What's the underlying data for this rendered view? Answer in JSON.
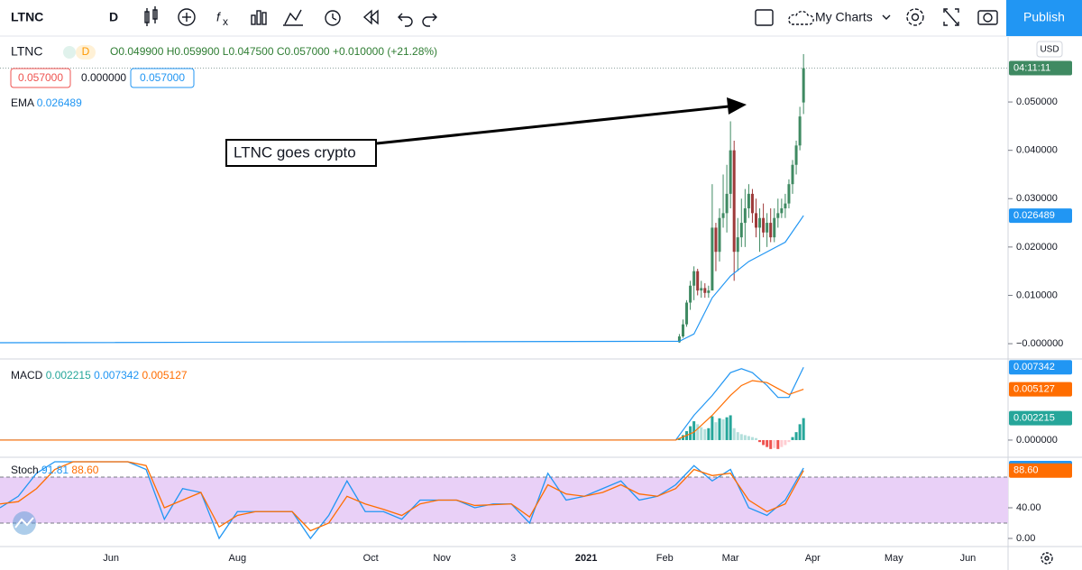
{
  "toolbar": {
    "symbol": "LTNC",
    "interval": "D",
    "layout": "My Charts",
    "publish": "Publish"
  },
  "legend": {
    "symbol": "LTNC",
    "interval": "D",
    "ohlc": [
      "O0.049900",
      "H0.059900",
      "L0.047500",
      "C0.057000",
      "+0.010000 (+21.28%)"
    ],
    "quotes": [
      "0.057000",
      "0.000000",
      "0.057000"
    ],
    "ema": [
      "EMA",
      "0.026489"
    ],
    "macd": [
      "MACD",
      "0.002215",
      "0.007342",
      "0.005127"
    ],
    "stoch": [
      "Stoch",
      "91.81",
      "88.60"
    ]
  },
  "price_axis": {
    "currency": "USD",
    "countdown": "04:11:11"
  },
  "annotation": "LTNC goes crypto",
  "chart_data": [
    {
      "type": "candlestick",
      "x": [
        186,
        187,
        188,
        189,
        190,
        191,
        192,
        193,
        194,
        195,
        196,
        197,
        198,
        199,
        200,
        201,
        202,
        203,
        204,
        205,
        206,
        207,
        208,
        209,
        210,
        211,
        212,
        213,
        214,
        215,
        216,
        217,
        218,
        219,
        220
      ],
      "open": [
        0.0003,
        0.0015,
        0.004,
        0.0085,
        0.012,
        0.015,
        0.011,
        0.0115,
        0.0105,
        0.011,
        0.024,
        0.019,
        0.026,
        0.027,
        0.031,
        0.04,
        0.019,
        0.022,
        0.025,
        0.028,
        0.031,
        0.027,
        0.024,
        0.026,
        0.023,
        0.025,
        0.022,
        0.026,
        0.027,
        0.028,
        0.029,
        0.033,
        0.037,
        0.041,
        0.0499
      ],
      "high": [
        0.002,
        0.005,
        0.009,
        0.013,
        0.016,
        0.0155,
        0.013,
        0.0125,
        0.012,
        0.033,
        0.025,
        0.028,
        0.035,
        0.037,
        0.046,
        0.042,
        0.026,
        0.03,
        0.032,
        0.033,
        0.032,
        0.03,
        0.028,
        0.029,
        0.027,
        0.028,
        0.028,
        0.03,
        0.03,
        0.031,
        0.034,
        0.038,
        0.042,
        0.049,
        0.0599
      ],
      "low": [
        0.0002,
        0.0012,
        0.0035,
        0.007,
        0.009,
        0.01,
        0.0095,
        0.0095,
        0.0095,
        0.011,
        0.015,
        0.017,
        0.024,
        0.023,
        0.028,
        0.013,
        0.015,
        0.02,
        0.02,
        0.026,
        0.025,
        0.022,
        0.019,
        0.022,
        0.02,
        0.021,
        0.021,
        0.024,
        0.026,
        0.026,
        0.028,
        0.031,
        0.035,
        0.04,
        0.0475
      ],
      "close": [
        0.0015,
        0.004,
        0.0085,
        0.012,
        0.015,
        0.011,
        0.0115,
        0.0105,
        0.011,
        0.024,
        0.019,
        0.026,
        0.027,
        0.031,
        0.04,
        0.019,
        0.022,
        0.025,
        0.028,
        0.031,
        0.027,
        0.024,
        0.026,
        0.023,
        0.025,
        0.022,
        0.026,
        0.027,
        0.028,
        0.029,
        0.033,
        0.037,
        0.041,
        0.047,
        0.057
      ],
      "up_color": "#3f8a62",
      "down_color": "#9e3a3a",
      "xlim": [
        0,
        276
      ],
      "xticks": [
        {
          "value": 30.4,
          "label": "Jun"
        },
        {
          "value": 65,
          "label": "Aug"
        },
        {
          "value": 101.5,
          "label": "Oct"
        },
        {
          "value": 121,
          "label": "Nov"
        },
        {
          "value": 140.5,
          "label": "3"
        },
        {
          "value": 160.5,
          "label": "2021"
        },
        {
          "value": 182,
          "label": "Feb"
        },
        {
          "value": 200,
          "label": "Mar"
        },
        {
          "value": 222.5,
          "label": "Apr"
        },
        {
          "value": 244.7,
          "label": "May"
        },
        {
          "value": 265,
          "label": "Jun"
        }
      ],
      "ylim": [
        -0.0026,
        0.0627
      ],
      "yticks": [
        {
          "value": 0,
          "label": "−0.000000"
        },
        {
          "value": 0.01,
          "label": "0.010000"
        },
        {
          "value": 0.02,
          "label": "0.020000"
        },
        {
          "value": 0.03,
          "label": "0.030000"
        },
        {
          "value": 0.04,
          "label": "0.040000"
        },
        {
          "value": 0.05,
          "label": "0.050000"
        }
      ],
      "overlay": {
        "name": "EMA",
        "color": "#2196f3",
        "x": [
          0,
          186,
          190,
          195,
          200,
          205,
          210,
          215,
          220
        ],
        "values": [
          0.0002,
          0.0005,
          0.002,
          0.0095,
          0.014,
          0.017,
          0.019,
          0.021,
          0.026489
        ]
      }
    },
    {
      "type": "macd",
      "ylim": [
        -0.00155,
        0.008
      ],
      "yticks": [
        {
          "value": 0,
          "label": "0.000000"
        }
      ],
      "series": [
        {
          "color": "#2196f3",
          "x": [
            0,
            185,
            190,
            195,
            200,
            203,
            206,
            210,
            213,
            216,
            220
          ],
          "values": [
            0,
            0,
            0.0025,
            0.0045,
            0.0068,
            0.0072,
            0.0068,
            0.0055,
            0.0043,
            0.0043,
            0.007342
          ]
        },
        {
          "color": "#ff6d00",
          "x": [
            0,
            185,
            190,
            195,
            200,
            203,
            206,
            210,
            213,
            216,
            220
          ],
          "values": [
            0,
            0,
            0.0008,
            0.0025,
            0.0045,
            0.0055,
            0.006,
            0.0058,
            0.0052,
            0.0046,
            0.005127
          ]
        }
      ],
      "histogram": {
        "x": [
          186,
          187,
          188,
          189,
          190,
          191,
          192,
          193,
          194,
          195,
          196,
          197,
          198,
          199,
          200,
          201,
          202,
          203,
          204,
          205,
          206,
          207,
          208,
          209,
          210,
          211,
          212,
          213,
          214,
          215,
          216,
          217,
          218,
          219,
          220
        ],
        "values": [
          0.0002,
          0.0005,
          0.0009,
          0.0014,
          0.0019,
          0.0016,
          0.0013,
          0.0011,
          0.0012,
          0.0024,
          0.0018,
          0.0022,
          0.0021,
          0.0023,
          0.0025,
          0.0012,
          0.0008,
          0.0006,
          0.0005,
          0.0004,
          0.0003,
          0.0002,
          -0.0002,
          -0.0005,
          -0.0007,
          -0.0009,
          -0.0008,
          -0.0009,
          -0.0007,
          -0.0005,
          -0.0002,
          0.0003,
          0.0008,
          0.0016,
          0.002215
        ],
        "colors": [
          "#26a69a",
          "#b2dfdb",
          "#ffcdd2",
          "#ef5350"
        ]
      }
    },
    {
      "type": "stochastic",
      "ylim": [
        -9.4,
        102.35
      ],
      "yticks": [
        {
          "value": 0,
          "label": "0.00"
        },
        {
          "value": 40,
          "label": "40.00"
        }
      ],
      "bands": [
        80,
        20
      ],
      "band_color": "#e9d0f7",
      "x": [
        0,
        5,
        10,
        15,
        20,
        25,
        30,
        35,
        40,
        45,
        50,
        55,
        60,
        65,
        70,
        75,
        80,
        85,
        90,
        95,
        100,
        105,
        110,
        115,
        120,
        125,
        130,
        135,
        140,
        145,
        150,
        155,
        160,
        165,
        170,
        175,
        180,
        185,
        190,
        195,
        200,
        205,
        210,
        215,
        220
      ],
      "series": [
        {
          "color": "#2196f3",
          "values": [
            40,
            55,
            85,
            100,
            100,
            100,
            100,
            100,
            90,
            25,
            65,
            60,
            0,
            35,
            35,
            35,
            35,
            0,
            30,
            75,
            35,
            35,
            25,
            50,
            50,
            50,
            40,
            45,
            45,
            20,
            85,
            50,
            55,
            65,
            75,
            50,
            55,
            70,
            95,
            75,
            90,
            40,
            30,
            50,
            91.81
          ]
        },
        {
          "color": "#ff6d00",
          "values": [
            45,
            48,
            65,
            90,
            100,
            100,
            100,
            100,
            95,
            40,
            50,
            60,
            15,
            30,
            35,
            35,
            35,
            10,
            20,
            55,
            45,
            38,
            30,
            45,
            50,
            50,
            43,
            44,
            45,
            28,
            70,
            58,
            55,
            60,
            70,
            58,
            55,
            65,
            90,
            82,
            85,
            50,
            35,
            45,
            88.6
          ]
        }
      ]
    }
  ]
}
